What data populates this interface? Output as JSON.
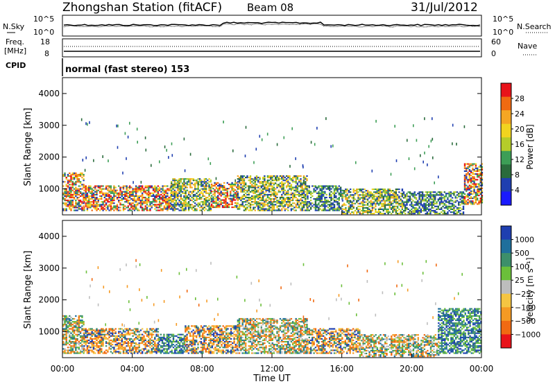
{
  "header": {
    "station": "Zhongshan Station (fitACF)",
    "beam": "Beam 08",
    "date": "31/Jul/2012",
    "mode": "normal (fast stereo) 153"
  },
  "noise_panel": {
    "left_label": "N.Sky",
    "right_label": "N.Search",
    "left_ticks": [
      "10^5",
      "10^0"
    ],
    "right_ticks": [
      "10^5",
      "10^0"
    ]
  },
  "freq_panel": {
    "left_label_1": "Freq.",
    "left_label_2": "[MHz]",
    "cpid_label": "CPID",
    "right_label": "Nave",
    "left_ticks": [
      "18",
      "8"
    ],
    "right_ticks": [
      "60",
      "0"
    ]
  },
  "chart_data": [
    {
      "type": "heatmap",
      "title": "Power",
      "ylabel": "Slant Range [km]",
      "colorbar_label": "Power [dB]",
      "colorbar_ticks": [
        "28",
        "24",
        "20",
        "16",
        "12",
        "8",
        "4"
      ],
      "colorbar_colors": [
        "#e8131a",
        "#f06a12",
        "#f5a623",
        "#f2d41f",
        "#b5cc2a",
        "#3d9e56",
        "#2a6b3c",
        "#1f3fb0",
        "#1a1aff"
      ],
      "ylim": [
        180,
        4500
      ],
      "yticks": [
        "1000",
        "2000",
        "3000",
        "4000"
      ],
      "xlim": [
        "00:00",
        "24:00"
      ],
      "bands": [
        {
          "t0": 0.0,
          "t1": 1.2,
          "r0": 300,
          "r1": 1500,
          "level": "high"
        },
        {
          "t0": 1.2,
          "t1": 6.2,
          "r0": 300,
          "r1": 1100,
          "level": "high"
        },
        {
          "t0": 6.2,
          "t1": 8.5,
          "r0": 300,
          "r1": 1300,
          "level": "medium"
        },
        {
          "t0": 8.5,
          "t1": 10.0,
          "r0": 400,
          "r1": 1200,
          "level": "high"
        },
        {
          "t0": 10.0,
          "t1": 14.0,
          "r0": 300,
          "r1": 1400,
          "level": "medium"
        },
        {
          "t0": 14.0,
          "t1": 16.0,
          "r0": 300,
          "r1": 1100,
          "level": "low"
        },
        {
          "t0": 16.0,
          "t1": 19.5,
          "r0": 200,
          "r1": 1000,
          "level": "medium"
        },
        {
          "t0": 19.5,
          "t1": 23.0,
          "r0": 200,
          "r1": 900,
          "level": "low"
        },
        {
          "t0": 23.0,
          "t1": 24.0,
          "r0": 500,
          "r1": 1800,
          "level": "high"
        }
      ]
    },
    {
      "type": "heatmap",
      "title": "Velocity",
      "ylabel": "Slant Range [km]",
      "colorbar_label": "Velocity [m s⁻¹]",
      "colorbar_ticks": [
        "1000",
        "500",
        "100",
        "25",
        "−25",
        "−100",
        "−500",
        "−1000"
      ],
      "colorbar_colors": [
        "#1f3fb0",
        "#1f6f9c",
        "#3d8f6a",
        "#6bbf3a",
        "#bdbdbd",
        "#f5c542",
        "#f59a23",
        "#f06a12",
        "#e8131a"
      ],
      "ylim": [
        180,
        4500
      ],
      "yticks": [
        "1000",
        "2000",
        "3000",
        "4000"
      ],
      "xlim": [
        "00:00",
        "24:00"
      ],
      "xlabel": "Time UT",
      "xticks": [
        "00:00",
        "04:00",
        "08:00",
        "12:00",
        "16:00",
        "20:00",
        "00:00"
      ],
      "bands": [
        {
          "t0": 0.0,
          "t1": 1.2,
          "r0": 300,
          "r1": 1500,
          "level": "mixed"
        },
        {
          "t0": 1.2,
          "t1": 5.5,
          "r0": 300,
          "r1": 1100,
          "level": "negative"
        },
        {
          "t0": 5.5,
          "t1": 7.0,
          "r0": 300,
          "r1": 900,
          "level": "positive"
        },
        {
          "t0": 7.0,
          "t1": 10.0,
          "r0": 300,
          "r1": 1200,
          "level": "negative"
        },
        {
          "t0": 10.0,
          "t1": 14.0,
          "r0": 300,
          "r1": 1400,
          "level": "mixed"
        },
        {
          "t0": 14.0,
          "t1": 17.0,
          "r0": 300,
          "r1": 1100,
          "level": "negative"
        },
        {
          "t0": 17.0,
          "t1": 21.5,
          "r0": 200,
          "r1": 900,
          "level": "mixed"
        },
        {
          "t0": 21.5,
          "t1": 24.0,
          "r0": 300,
          "r1": 1700,
          "level": "positive"
        }
      ]
    }
  ]
}
